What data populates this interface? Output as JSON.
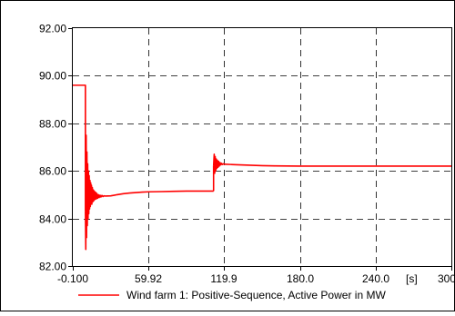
{
  "chart_data": {
    "type": "line",
    "title": "",
    "xlabel": "",
    "ylabel": "",
    "x_unit": "[s]",
    "xlim": [
      -0.1,
      300.0
    ],
    "ylim": [
      82.0,
      92.0
    ],
    "x_ticks": [
      -0.1,
      59.92,
      119.9,
      180.0,
      240.0,
      300.0
    ],
    "x_tick_labels": [
      "-0.100",
      "59.92",
      "119.9",
      "180.0",
      "240.0",
      "300.0"
    ],
    "y_ticks": [
      82.0,
      84.0,
      86.0,
      88.0,
      90.0,
      92.0
    ],
    "y_tick_labels": [
      "82.00",
      "84.00",
      "86.00",
      "88.00",
      "90.00",
      "92.00"
    ],
    "grid": true,
    "grid_style": "dashed",
    "legend": {
      "position": "bottom",
      "entries": [
        "Wind farm 1: Positive-Sequence, Active Power in MW"
      ]
    },
    "colors": {
      "series": "#ff0000",
      "grid": "#000000",
      "background": "#ffffff"
    },
    "series": [
      {
        "name": "Wind farm 1: Positive-Sequence, Active Power in MW",
        "color": "#ff0000",
        "segments": [
          {
            "x": [
              -0.1,
              9.9,
              9.9
            ],
            "y": [
              89.6,
              89.6,
              84.3
            ]
          },
          {
            "x": [
              9.9,
              10.2,
              10.5,
              10.8,
              11.1,
              11.4,
              11.7,
              12.0,
              12.3,
              12.6,
              12.9,
              13.2,
              13.5,
              13.8,
              14.1,
              14.4,
              14.7,
              15.0,
              15.4,
              15.8,
              16.2,
              16.6,
              17.0,
              17.5,
              18.0,
              18.5,
              19.0,
              19.6,
              20.2,
              20.8,
              21.5,
              22.2,
              23.0,
              23.8,
              24.6,
              25.5
            ],
            "y": [
              84.3,
              82.7,
              87.5,
              83.2,
              86.8,
              83.7,
              86.3,
              84.0,
              86.0,
              84.2,
              85.8,
              84.4,
              85.6,
              84.5,
              85.5,
              84.6,
              85.4,
              84.6,
              85.3,
              84.7,
              85.2,
              84.75,
              85.15,
              84.8,
              85.1,
              84.82,
              85.05,
              84.85,
              85.0,
              84.88,
              84.98,
              84.9,
              84.97,
              84.92,
              84.95,
              84.94
            ]
          },
          {
            "x": [
              25.5,
              30,
              35,
              40,
              45,
              50,
              55,
              60,
              70,
              80,
              90,
              100,
              108,
              111.5
            ],
            "y": [
              84.94,
              84.95,
              85.0,
              85.04,
              85.07,
              85.09,
              85.11,
              85.12,
              85.13,
              85.14,
              85.15,
              85.15,
              85.15,
              85.15
            ]
          },
          {
            "x": [
              111.5,
              111.5
            ],
            "y": [
              85.15,
              86.2
            ]
          },
          {
            "x": [
              111.5,
              112.0,
              112.4,
              112.8,
              113.2,
              113.6,
              114.0,
              114.5,
              115.0,
              115.5,
              116.0,
              116.6,
              117.2,
              117.8,
              118.5,
              119.2,
              120.0
            ],
            "y": [
              86.2,
              86.7,
              85.9,
              86.6,
              86.0,
              86.5,
              86.1,
              86.45,
              86.15,
              86.4,
              86.2,
              86.35,
              86.25,
              86.32,
              86.27,
              86.3,
              86.28
            ]
          },
          {
            "x": [
              120.0,
              125,
              130,
              135,
              140,
              150,
              160,
              180,
              200,
              240,
              300
            ],
            "y": [
              86.28,
              86.27,
              86.26,
              86.25,
              86.24,
              86.22,
              86.21,
              86.2,
              86.2,
              86.2,
              86.2
            ]
          }
        ]
      }
    ]
  }
}
